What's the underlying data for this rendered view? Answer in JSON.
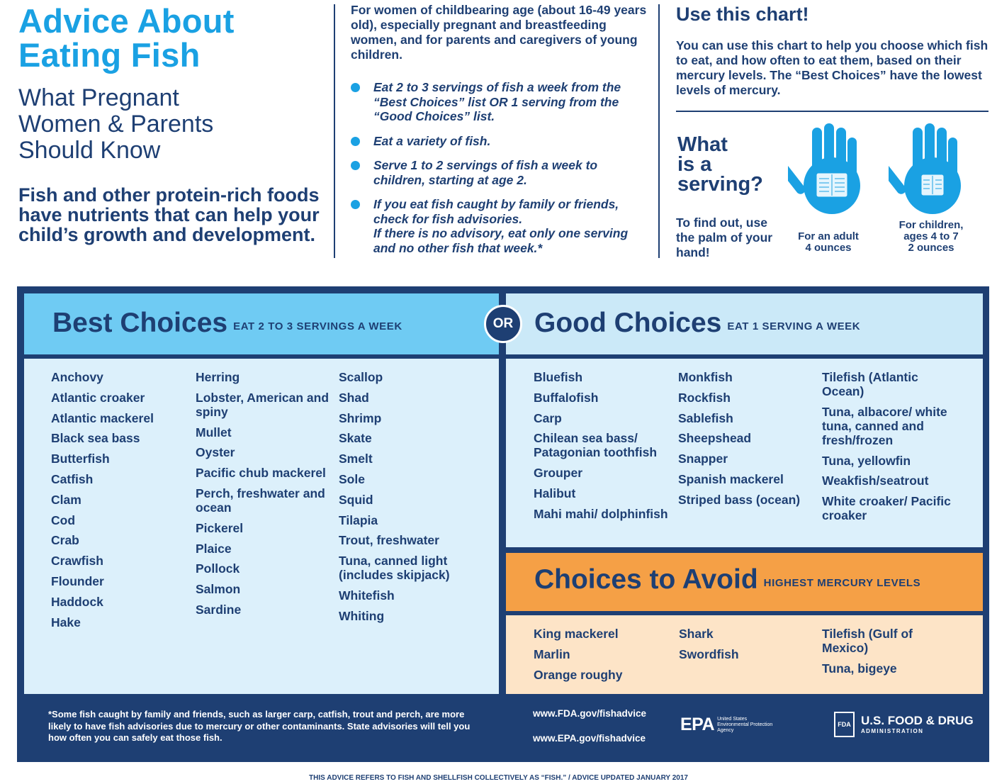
{
  "header": {
    "title_line1": "Advice About",
    "title_line2": "Eating Fish",
    "subtitle_line1": "What Pregnant",
    "subtitle_line2": "Women & Parents",
    "subtitle_line3": "Should Know",
    "lead": "Fish and other protein-rich foods have nutrients that can help your child’s growth and development."
  },
  "guidance": {
    "audience": "For women of childbearing age (about 16-49 years old), especially pregnant and breastfeeding women, and for parents and caregivers of young children.",
    "bullets": [
      "Eat 2 to 3 servings of fish a week from the “Best Choices” list OR 1 serving from the “Good Choices” list.",
      "Eat a variety of fish.",
      "Serve 1 to 2 servings of fish a week to children, starting at age 2.",
      "If you eat fish caught by family or friends, check for fish advisories.",
      "If there is no advisory, eat only one serving and no other fish that week.*"
    ]
  },
  "use_chart": {
    "title": "Use this chart!",
    "text": "You can use this chart to help you choose which fish to eat, and how often to eat them, based on their mercury levels. The “Best Choices” have the lowest levels of mercury.",
    "serving_title_1": "What",
    "serving_title_2": "is a",
    "serving_title_3": "serving?",
    "serving_sub": "To find out, use the palm of your hand!",
    "adult_caption_1": "For an adult",
    "adult_caption_2": "4 ounces",
    "child_caption_1": "For children,",
    "child_caption_2": "ages 4 to 7",
    "child_caption_3": "2 ounces",
    "hand_icon": "hand-palm-icon"
  },
  "chart": {
    "or_label": "OR",
    "best": {
      "title": "Best Choices",
      "note": "EAT 2 TO 3 SERVINGS A WEEK",
      "columns": [
        [
          "Anchovy",
          "Atlantic croaker",
          "Atlantic mackerel",
          "Black sea bass",
          "Butterfish",
          "Catfish",
          "Clam",
          "Cod",
          "Crab",
          "Crawfish",
          "Flounder",
          "Haddock",
          "Hake"
        ],
        [
          "Herring",
          "Lobster, American and spiny",
          "Mullet",
          "Oyster",
          "Pacific chub mackerel",
          "Perch, freshwater and ocean",
          "Pickerel",
          "Plaice",
          "Pollock",
          "Salmon",
          "Sardine"
        ],
        [
          "Scallop",
          "Shad",
          "Shrimp",
          "Skate",
          "Smelt",
          "Sole",
          "Squid",
          "Tilapia",
          "Trout, freshwater",
          "Tuna, canned light (includes skipjack)",
          "Whitefish",
          "Whiting"
        ]
      ]
    },
    "good": {
      "title": "Good Choices",
      "note": "EAT 1 SERVING A WEEK",
      "columns": [
        [
          "Bluefish",
          "Buffalofish",
          "Carp",
          "Chilean sea bass/ Patagonian toothfish",
          "Grouper",
          "Halibut",
          "Mahi mahi/ dolphinfish"
        ],
        [
          "Monkfish",
          "Rockfish",
          "Sablefish",
          "Sheepshead",
          "Snapper",
          "Spanish mackerel",
          "Striped bass (ocean)"
        ],
        [
          "Tilefish (Atlantic Ocean)",
          "Tuna, albacore/ white tuna, canned and fresh/frozen",
          "Tuna, yellowfin",
          "Weakfish/seatrout",
          "White croaker/ Pacific croaker"
        ]
      ]
    },
    "avoid": {
      "title": "Choices to Avoid",
      "note": "HIGHEST MERCURY LEVELS",
      "columns": [
        [
          "King mackerel",
          "Marlin",
          "Orange roughy"
        ],
        [
          "Shark",
          "Swordfish"
        ],
        [
          "Tilefish (Gulf of Mexico)",
          "Tuna, bigeye"
        ]
      ]
    },
    "colors": {
      "navy": "#1e3f73",
      "best_header": "#6fcbf3",
      "good_header": "#cbe9f8",
      "list_bg": "#dcf0fb",
      "avoid_header": "#f5a046",
      "avoid_bg": "#fde4c7",
      "accent_blue": "#1aa1e3"
    }
  },
  "footer": {
    "footnote": "*Some fish caught by family and friends, such as larger carp, catfish, trout and perch, are more likely to have fish advisories due to mercury or other contaminants. State advisories will tell you how often you can safely eat those fish.",
    "fda_url": "www.FDA.gov/fishadvice",
    "epa_url": "www.EPA.gov/fishadvice",
    "epa_logo": "EPA",
    "epa_logo_sub": "United States Environmental Protection Agency",
    "fda_box": "FDA",
    "fda_name": "U.S. FOOD & DRUG",
    "fda_admin": "ADMINISTRATION",
    "bottom_note": "THIS ADVICE REFERS TO FISH AND SHELLFISH COLLECTIVELY AS “FISH.” / ADVICE UPDATED JANUARY 2017"
  }
}
